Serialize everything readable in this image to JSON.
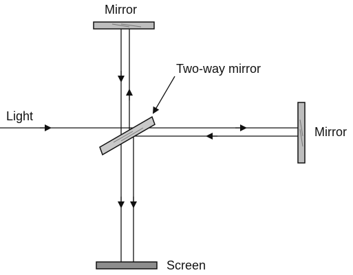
{
  "labels": {
    "top_mirror": "Mirror",
    "two_way_mirror": "Two-way mirror",
    "light": "Light",
    "right_mirror": "Mirror",
    "screen": "Screen"
  },
  "colors": {
    "stroke": "#111111",
    "mirror_fill": "#bdbdbd",
    "screen_fill": "#8d8d8d"
  }
}
